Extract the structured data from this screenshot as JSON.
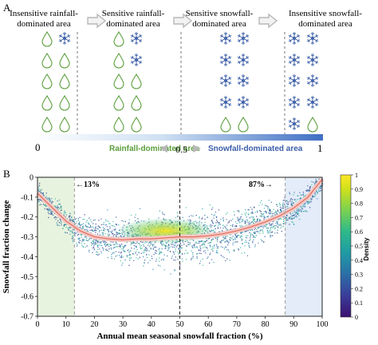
{
  "panel_a": {
    "label": "A",
    "headers": [
      "Insensitive rainfall-\ndominated area",
      "Sensitive rainfall-\ndominated area",
      "Sensitive snowfall-\ndominated area",
      "Insensitive snowfall-\ndominated area"
    ],
    "scale_start": "0",
    "scale_mid": "0.5",
    "scale_end": "1",
    "rain_label": "Rainfall-dominated area",
    "snow_label": "Snowfall-dominated area",
    "colors": {
      "rain": "#5a9e3a",
      "snow": "#3b5ea8",
      "arrow": "#b8b8b8"
    },
    "icon_grid": [
      [
        "rain",
        "snow",
        "rain",
        "snow",
        "snow",
        "snow",
        "snow",
        "snow"
      ],
      [
        "rain",
        "rain",
        "rain",
        "snow",
        "snow",
        "snow",
        "snow",
        "snow"
      ],
      [
        "rain",
        "rain",
        "rain",
        "rain",
        "snow",
        "snow",
        "snow",
        "snow"
      ],
      [
        "rain",
        "rain",
        "rain",
        "rain",
        "snow",
        "snow",
        "snow",
        "snow"
      ],
      [
        "rain",
        "rain",
        "rain",
        "rain",
        "rain",
        "rain",
        "snow",
        "rain"
      ]
    ]
  },
  "panel_b": {
    "label": "B"
  },
  "chart_data": {
    "type": "scatter",
    "xlabel": "Annual mean seasonal snowfall fraction (%)",
    "ylabel": "Snowfall fraction change",
    "xlim": [
      0,
      100
    ],
    "ylim": [
      -0.7,
      0
    ],
    "xticks": [
      0,
      10,
      20,
      30,
      40,
      50,
      60,
      70,
      80,
      90,
      100
    ],
    "yticks": [
      0,
      -0.1,
      -0.2,
      -0.3,
      -0.4,
      -0.5,
      -0.6,
      -0.7
    ],
    "annotations": {
      "left": "←13%",
      "right": "87%→"
    },
    "vlines": [
      13,
      50,
      87
    ],
    "shaded_regions": [
      {
        "from": 0,
        "to": 13,
        "color": "#e8f3df"
      },
      {
        "from": 87,
        "to": 100,
        "color": "#e3ecf8"
      }
    ],
    "colorbar": {
      "label": "Density",
      "range": [
        0,
        1
      ],
      "ticks": [
        "0",
        "0.1",
        "0.2",
        "0.3",
        "0.4",
        "0.5",
        "0.6",
        "0.7",
        "0.8",
        "0.9",
        "1"
      ]
    },
    "mean_curve": {
      "x": [
        0,
        5,
        10,
        15,
        20,
        25,
        30,
        35,
        40,
        45,
        50,
        55,
        60,
        65,
        70,
        75,
        80,
        85,
        90,
        95,
        100
      ],
      "y": [
        -0.08,
        -0.15,
        -0.22,
        -0.27,
        -0.3,
        -0.31,
        -0.315,
        -0.31,
        -0.31,
        -0.305,
        -0.3,
        -0.3,
        -0.295,
        -0.285,
        -0.27,
        -0.25,
        -0.225,
        -0.195,
        -0.155,
        -0.1,
        -0.01
      ]
    }
  }
}
